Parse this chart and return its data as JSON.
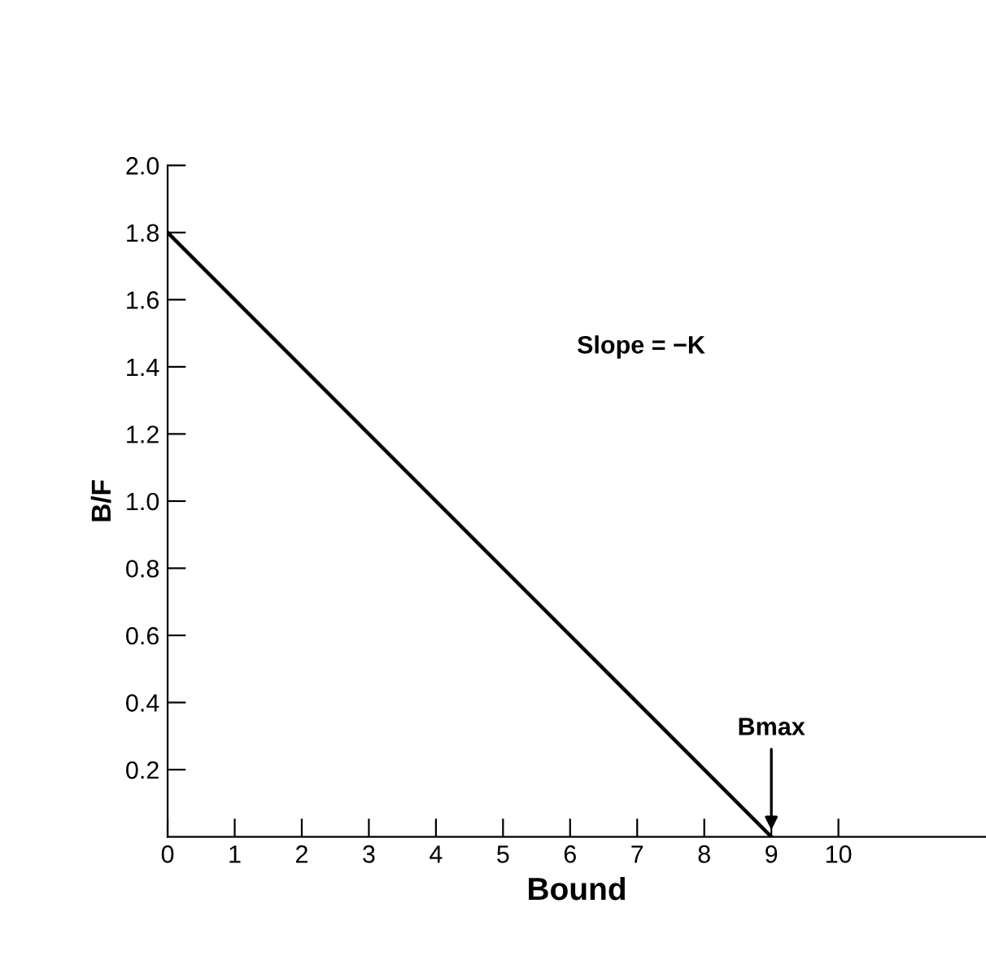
{
  "chart_data": {
    "type": "line",
    "xlabel": "Bound",
    "ylabel": "B/F",
    "x": [
      0,
      9
    ],
    "series": [
      {
        "color": "#000000",
        "values": [
          1.8,
          0
        ]
      }
    ],
    "xlim": [
      0,
      12.2
    ],
    "ylim": [
      0,
      2.0
    ],
    "xticks": [
      0,
      1,
      2,
      3,
      4,
      5,
      6,
      7,
      8,
      9,
      10
    ],
    "yticks": [
      0.2,
      0.4,
      0.6,
      0.8,
      {
        "value": 1,
        "label": "1.0"
      },
      1.2,
      1.4,
      1.6,
      1.8,
      {
        "value": 2,
        "label": "2.0"
      }
    ],
    "annotations": [
      "Slope = −K",
      {
        "text": "Bmax",
        "x": 9,
        "y": 0
      }
    ],
    "grid": false,
    "legend": false,
    "marker": "none",
    "line_style": "solid"
  }
}
